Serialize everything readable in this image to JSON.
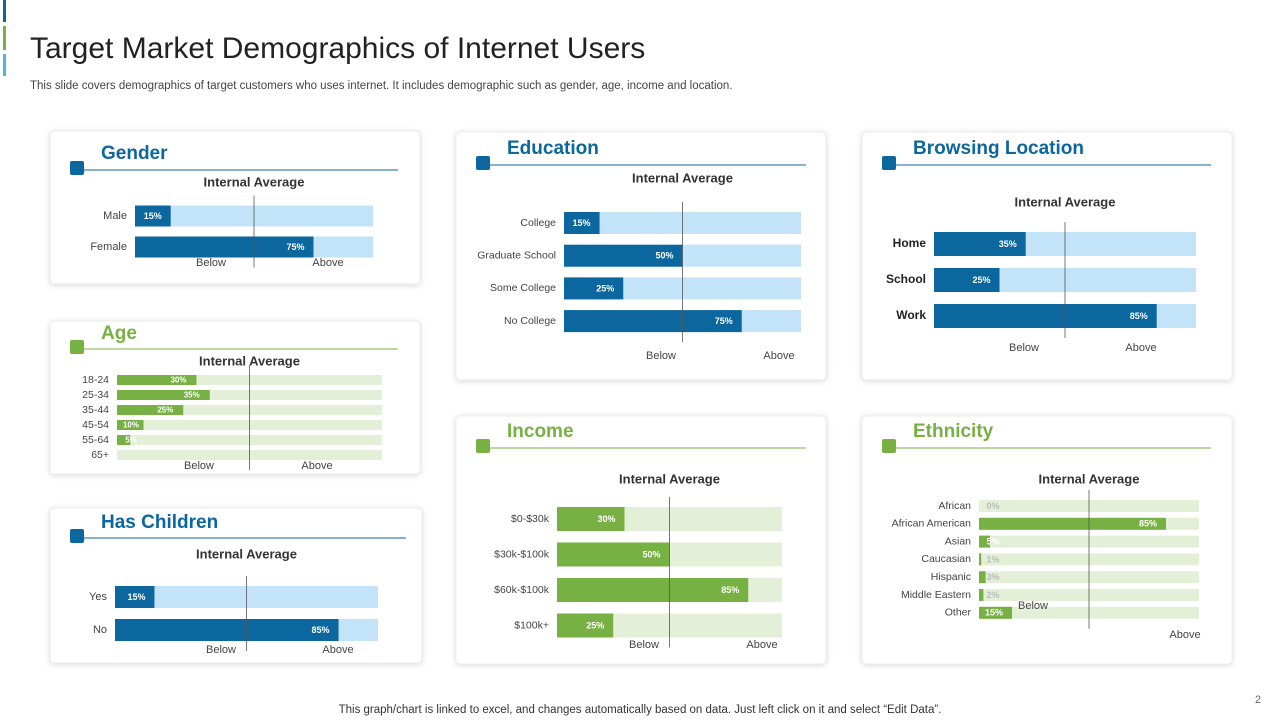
{
  "header": {
    "title": "Target Market Demographics of Internet Users",
    "subtitle": "This slide covers demographics of target customers who uses internet. It includes demographic such as gender, age, income and location."
  },
  "footer": {
    "note": "This graph/chart is linked to excel,  and changes automatically based on data. Just left click on it and select “Edit Data”.",
    "page_number": "2"
  },
  "chart_data": [
    {
      "type": "bar",
      "title": "Gender",
      "subtitle": "Internal Average",
      "categories": [
        "Male",
        "Female"
      ],
      "values": [
        15,
        75
      ],
      "value_labels": [
        "15%",
        "75%"
      ],
      "xlim": [
        0,
        100
      ],
      "axis_labels": [
        "Below",
        "Above"
      ],
      "color": "#0b679d",
      "track_color": "#c3e4f8"
    },
    {
      "type": "bar",
      "title": "Age",
      "subtitle": "Internal Average",
      "categories": [
        "18-24",
        "25-34",
        "35-44",
        "45-54",
        "55-64",
        "65+"
      ],
      "values": [
        30,
        35,
        25,
        10,
        5,
        0
      ],
      "value_labels": [
        "30%",
        "35%",
        "25%",
        "10%",
        "5%",
        null
      ],
      "xlim": [
        0,
        100
      ],
      "axis_labels": [
        "Below",
        "Above"
      ],
      "color": "#77b143",
      "track_color": "#e3f0d7"
    },
    {
      "type": "bar",
      "title": "Has Children",
      "subtitle": "Internal Average",
      "categories": [
        "Yes",
        "No"
      ],
      "values": [
        15,
        85
      ],
      "value_labels": [
        "15%",
        "85%"
      ],
      "xlim": [
        0,
        100
      ],
      "axis_labels": [
        "Below",
        "Above"
      ],
      "color": "#0b679d",
      "track_color": "#c3e4f8"
    },
    {
      "type": "bar",
      "title": "Education",
      "subtitle": "Internal Average",
      "categories": [
        "College",
        "Graduate School",
        "Some College",
        "No College"
      ],
      "values": [
        15,
        50,
        25,
        75
      ],
      "value_labels": [
        "15%",
        "50%",
        "25%",
        "75%"
      ],
      "xlim": [
        0,
        100
      ],
      "axis_labels": [
        "Below",
        "Above"
      ],
      "color": "#0b679d",
      "track_color": "#c3e4f8"
    },
    {
      "type": "bar",
      "title": "Browsing Location",
      "subtitle": "Internal Average",
      "categories": [
        "Home",
        "School",
        "Work"
      ],
      "values": [
        35,
        25,
        85
      ],
      "value_labels": [
        "35%",
        "25%",
        "85%"
      ],
      "xlim": [
        0,
        100
      ],
      "axis_labels": [
        "Below",
        "Above"
      ],
      "color": "#0b679d",
      "track_color": "#c3e4f8"
    },
    {
      "type": "bar",
      "title": "Income",
      "subtitle": "Internal Average",
      "categories": [
        "$0-$30k",
        "$30k-$100k",
        "$60k-$100k",
        "$100k+"
      ],
      "values": [
        30,
        50,
        85,
        25
      ],
      "value_labels": [
        "30%",
        "50%",
        "85%",
        "25%"
      ],
      "xlim": [
        0,
        100
      ],
      "axis_labels": [
        "Below",
        "Above"
      ],
      "color": "#77b143",
      "track_color": "#e3f0d7"
    },
    {
      "type": "bar",
      "title": "Ethnicity",
      "subtitle": "Internal Average",
      "categories": [
        "African",
        "African American",
        "Asian",
        "Caucasian",
        "Hispanic",
        "Middle Eastern",
        "Other"
      ],
      "values": [
        0,
        85,
        5,
        1,
        3,
        2,
        15
      ],
      "value_labels": [
        "0%",
        "85%",
        "5%",
        "1%",
        "3%",
        "2%",
        "15%"
      ],
      "xlim": [
        0,
        100
      ],
      "axis_labels": [
        "Below",
        "Above"
      ],
      "color": "#77b143",
      "track_color": "#e3f0d7"
    }
  ]
}
